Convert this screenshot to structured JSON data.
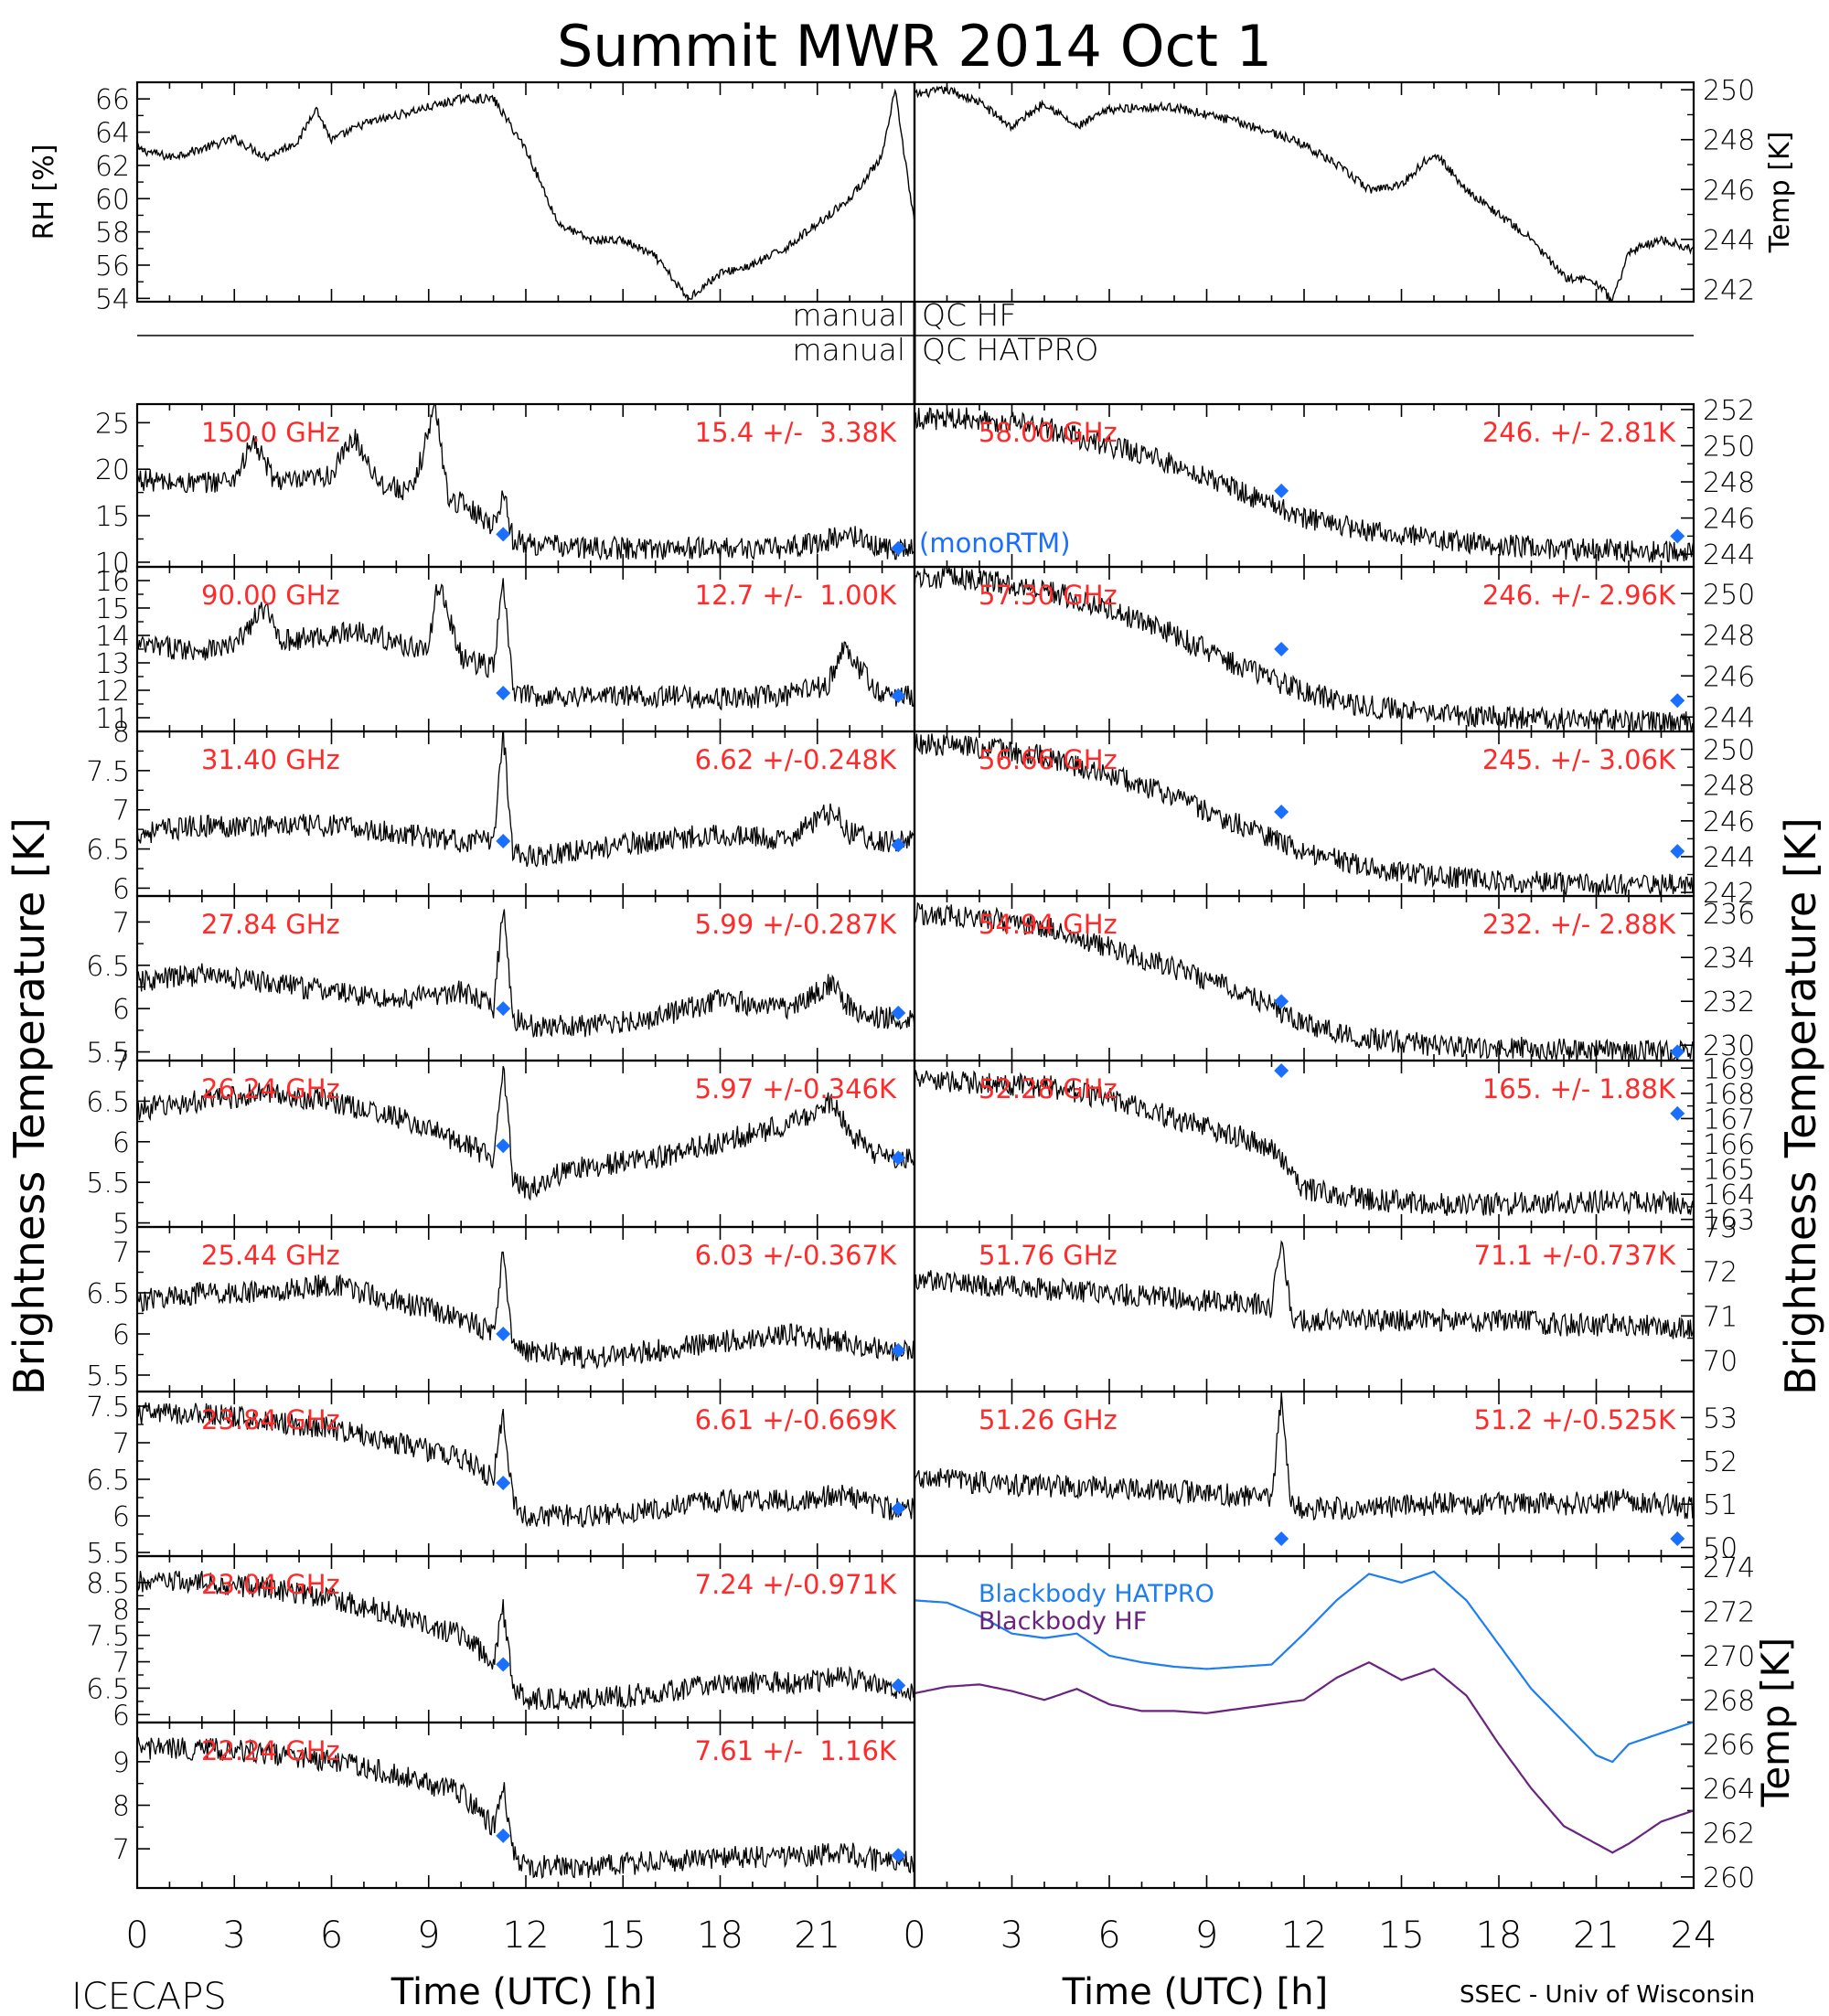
{
  "figure": {
    "title": "Summit MWR 2014 Oct  1",
    "footer_left": "ICECAPS",
    "footer_right": "SSEC - Univ of Wisconsin",
    "left_axis_label": "Brightness Temperature [K]",
    "right_axis_label": "Brightness Temperature [K]",
    "xlabel": "Time (UTC) [h]",
    "x_ticks": [
      "0",
      "3",
      "6",
      "9",
      "12",
      "15",
      "18",
      "21"
    ],
    "x_ticks_right": [
      "0",
      "3",
      "6",
      "9",
      "12",
      "15",
      "18",
      "21",
      "24"
    ],
    "qc_hf": "manual",
    "qc_hf_right": "QC HF",
    "qc_hatpro": "manual",
    "qc_hatpro_right": "QC HATPRO",
    "monortm_label": "(monoRTM)",
    "colors": {
      "trace": "#000000",
      "annotation": "#ff2a2a",
      "marker": "#1a6fff",
      "hatpro": "#1e7ef0",
      "hf": "#6a2480"
    }
  },
  "chart_data": [
    {
      "id": "rh",
      "type": "line",
      "ylabel": "RH [%]",
      "ylim": [
        53.8,
        67
      ],
      "yticks": [
        54,
        56,
        58,
        60,
        62,
        64,
        66
      ],
      "x": [
        0,
        1,
        2,
        3,
        4,
        5,
        5.5,
        6,
        7,
        8,
        9,
        10,
        11,
        12,
        13,
        14,
        15,
        16,
        17,
        18,
        19,
        20,
        21,
        22,
        23,
        23.4,
        24
      ],
      "values": [
        63,
        62.5,
        63,
        63.6,
        62.5,
        63.5,
        65.5,
        63.5,
        64.5,
        65,
        65.5,
        66,
        66,
        63,
        58.5,
        57.5,
        57.5,
        56.5,
        54,
        55.5,
        56,
        57,
        58.5,
        60,
        62.5,
        66.5,
        58.5
      ]
    },
    {
      "id": "temp",
      "type": "line",
      "ylabel": "Temp [K]",
      "ylim": [
        241.5,
        250.3
      ],
      "yticks": [
        242,
        244,
        246,
        248,
        250
      ],
      "x": [
        0,
        1,
        2,
        3,
        4,
        5,
        6,
        7,
        8,
        9,
        10,
        11,
        12,
        13,
        14,
        15,
        16,
        17,
        18,
        19,
        20,
        21,
        21.5,
        22,
        23,
        24
      ],
      "values": [
        249.8,
        250,
        249.5,
        248.5,
        249.5,
        248.5,
        249.2,
        249.3,
        249.3,
        249,
        248.7,
        248.3,
        247.8,
        247,
        246,
        246.2,
        247.5,
        246,
        245,
        244,
        242.5,
        242.3,
        241.5,
        243.5,
        244,
        243.6
      ]
    },
    {
      "id": "ch150",
      "type": "line",
      "channel": "150.0 GHz",
      "stats": "15.4 +/-  3.38K",
      "ylim": [
        9.5,
        27
      ],
      "yticks": [
        10,
        15,
        20,
        25
      ],
      "x": [
        0,
        1,
        2,
        3,
        3.6,
        4.2,
        5,
        6,
        6.7,
        7.5,
        8.5,
        9.2,
        9.6,
        10.2,
        11,
        11.3,
        11.6,
        12,
        14,
        16,
        18,
        20,
        21.5,
        22,
        23,
        24
      ],
      "values": [
        19,
        18.5,
        18.5,
        19,
        23,
        19,
        18.5,
        19.5,
        23.5,
        18.5,
        17.5,
        27,
        17,
        16,
        14,
        17.5,
        12.5,
        12,
        11.5,
        11.5,
        11.5,
        11.5,
        12.5,
        13,
        11.5,
        11.5
      ],
      "markers": [
        {
          "x": 11.3,
          "y": 13.0
        },
        {
          "x": 23.5,
          "y": 11.5
        }
      ]
    },
    {
      "id": "ch90",
      "type": "line",
      "channel": "90.00 GHz",
      "stats": "12.7 +/-  1.00K",
      "ylim": [
        10.5,
        16.5
      ],
      "yticks": [
        11,
        12,
        13,
        14,
        15,
        16
      ],
      "x": [
        0,
        2,
        3,
        3.9,
        4.5,
        6,
        7,
        8,
        9,
        9.3,
        10,
        11,
        11.3,
        11.6,
        12,
        14,
        16,
        18,
        20,
        21.3,
        21.8,
        22.5,
        23,
        24
      ],
      "values": [
        13.6,
        13.5,
        13.6,
        15,
        13.8,
        14,
        14.2,
        13.7,
        13.5,
        16,
        13.2,
        12.8,
        16,
        12.0,
        11.8,
        11.8,
        11.8,
        11.7,
        11.8,
        12.2,
        13.5,
        12.5,
        11.8,
        11.8
      ],
      "markers": [
        {
          "x": 11.3,
          "y": 11.9
        },
        {
          "x": 23.5,
          "y": 11.8
        }
      ]
    },
    {
      "id": "ch31",
      "type": "line",
      "channel": "31.40 GHz",
      "stats": "6.62 +/-0.248K",
      "ylim": [
        5.9,
        8.0
      ],
      "yticks": [
        6.0,
        6.5,
        7.0,
        7.5,
        8.0
      ],
      "x": [
        0,
        2,
        4,
        6,
        8,
        10,
        11,
        11.3,
        11.6,
        12,
        14,
        16,
        18,
        20,
        21.5,
        22,
        23,
        24
      ],
      "values": [
        6.7,
        6.8,
        6.8,
        6.8,
        6.7,
        6.6,
        6.6,
        8.0,
        6.5,
        6.4,
        6.5,
        6.6,
        6.7,
        6.6,
        7.0,
        6.7,
        6.6,
        6.6
      ],
      "markers": [
        {
          "x": 11.3,
          "y": 6.6
        },
        {
          "x": 23.5,
          "y": 6.55
        }
      ]
    },
    {
      "id": "ch27",
      "type": "line",
      "channel": "27.84 GHz",
      "stats": "5.99 +/-0.287K",
      "ylim": [
        5.4,
        7.3
      ],
      "yticks": [
        5.5,
        6.0,
        6.5,
        7.0
      ],
      "x": [
        0,
        2,
        4,
        6,
        8,
        10,
        11,
        11.3,
        11.6,
        12,
        14,
        16,
        18,
        20,
        21.5,
        22,
        23,
        24
      ],
      "values": [
        6.3,
        6.4,
        6.3,
        6.2,
        6.1,
        6.2,
        6.0,
        7.2,
        5.9,
        5.8,
        5.8,
        5.9,
        6.1,
        6.0,
        6.3,
        6.0,
        5.9,
        5.9
      ],
      "markers": [
        {
          "x": 11.3,
          "y": 6.0
        },
        {
          "x": 23.5,
          "y": 5.95
        }
      ]
    },
    {
      "id": "ch26",
      "type": "line",
      "channel": "26.24 GHz",
      "stats": "5.97 +/-0.346K",
      "ylim": [
        4.95,
        7.0
      ],
      "yticks": [
        5.0,
        5.5,
        6.0,
        6.5,
        7.0
      ],
      "x": [
        0,
        2,
        4,
        6,
        8,
        10,
        11,
        11.3,
        11.6,
        12,
        13,
        14,
        16,
        18,
        20,
        21.5,
        22,
        23,
        24
      ],
      "values": [
        6.4,
        6.5,
        6.6,
        6.5,
        6.3,
        6.0,
        5.8,
        7.0,
        5.6,
        5.4,
        5.6,
        5.7,
        5.8,
        6.0,
        6.2,
        6.5,
        6.1,
        5.8,
        5.8
      ],
      "markers": [
        {
          "x": 11.3,
          "y": 5.95
        },
        {
          "x": 23.5,
          "y": 5.8
        }
      ]
    },
    {
      "id": "ch25",
      "type": "line",
      "channel": "25.44 GHz",
      "stats": "6.03 +/-0.367K",
      "ylim": [
        5.3,
        7.3
      ],
      "yticks": [
        5.5,
        6.0,
        6.5,
        7.0
      ],
      "x": [
        0,
        2,
        4,
        6,
        8,
        10,
        11,
        11.3,
        11.6,
        12,
        14,
        16,
        18,
        20,
        22,
        23,
        24
      ],
      "values": [
        6.4,
        6.5,
        6.5,
        6.6,
        6.4,
        6.2,
        6.0,
        7.0,
        5.9,
        5.8,
        5.7,
        5.8,
        5.9,
        6.0,
        5.9,
        5.8,
        5.8
      ],
      "markers": [
        {
          "x": 11.3,
          "y": 6.0
        },
        {
          "x": 23.5,
          "y": 5.8
        }
      ]
    },
    {
      "id": "ch23_84",
      "type": "line",
      "channel": "23.84 GHz",
      "stats": "6.61 +/-0.669K",
      "ylim": [
        5.45,
        7.7
      ],
      "yticks": [
        5.5,
        6.0,
        6.5,
        7.0,
        7.5
      ],
      "x": [
        0,
        2,
        4,
        6,
        8,
        10,
        11,
        11.3,
        11.6,
        12,
        14,
        16,
        18,
        20,
        22,
        23,
        24
      ],
      "values": [
        7.4,
        7.4,
        7.3,
        7.2,
        7.0,
        6.8,
        6.5,
        7.4,
        6.2,
        6.0,
        6.0,
        6.1,
        6.2,
        6.2,
        6.3,
        6.1,
        6.1
      ],
      "markers": [
        {
          "x": 11.3,
          "y": 6.45
        },
        {
          "x": 23.5,
          "y": 6.1
        }
      ]
    },
    {
      "id": "ch23_04",
      "type": "line",
      "channel": "23.04 GHz",
      "stats": "7.24 +/-0.971K",
      "ylim": [
        5.85,
        9.0
      ],
      "yticks": [
        6.0,
        6.5,
        7.0,
        7.5,
        8.0,
        8.5
      ],
      "x": [
        0,
        2,
        4,
        6,
        8,
        10,
        11,
        11.3,
        11.6,
        12,
        14,
        16,
        18,
        20,
        22,
        23,
        24
      ],
      "values": [
        8.5,
        8.5,
        8.4,
        8.2,
        7.9,
        7.5,
        7.0,
        8.0,
        6.5,
        6.3,
        6.3,
        6.4,
        6.6,
        6.6,
        6.7,
        6.5,
        6.4
      ],
      "markers": [
        {
          "x": 11.3,
          "y": 6.95
        },
        {
          "x": 23.5,
          "y": 6.55
        }
      ]
    },
    {
      "id": "ch22",
      "type": "line",
      "channel": "22.24 GHz",
      "stats": "7.61 +/-  1.16K",
      "ylim": [
        6.1,
        9.9
      ],
      "yticks": [
        7,
        8,
        9
      ],
      "x": [
        0,
        2,
        4,
        6,
        8,
        10,
        11,
        11.3,
        11.6,
        12,
        14,
        16,
        18,
        20,
        22,
        23,
        24
      ],
      "values": [
        9.3,
        9.3,
        9.2,
        9.0,
        8.7,
        8.3,
        7.5,
        8.5,
        6.9,
        6.6,
        6.6,
        6.7,
        6.8,
        6.8,
        6.9,
        6.7,
        6.7
      ],
      "markers": [
        {
          "x": 11.3,
          "y": 7.3
        },
        {
          "x": 23.5,
          "y": 6.85
        }
      ]
    },
    {
      "id": "ch58",
      "type": "line",
      "channel": "58.00 GHz",
      "stats": "246. +/- 2.81K",
      "ylim": [
        243.3,
        252.3
      ],
      "yticks": [
        244,
        246,
        248,
        250,
        252
      ],
      "x": [
        0,
        2,
        4,
        6,
        8,
        10,
        12,
        14,
        16,
        18,
        20,
        22,
        24
      ],
      "values": [
        251.5,
        251.5,
        251,
        250,
        249,
        247.5,
        246,
        245.3,
        244.8,
        244.5,
        244.3,
        244.2,
        244.1
      ],
      "markers": [
        {
          "x": 11.3,
          "y": 247.5
        },
        {
          "x": 23.5,
          "y": 245.0
        }
      ]
    },
    {
      "id": "ch57_30",
      "type": "line",
      "channel": "57.30 GHz",
      "stats": "246. +/- 2.96K",
      "ylim": [
        243.3,
        251.3
      ],
      "yticks": [
        244,
        246,
        248,
        250
      ],
      "x": [
        0,
        2,
        4,
        6,
        8,
        10,
        12,
        14,
        16,
        18,
        20,
        22,
        24
      ],
      "values": [
        250.8,
        250.7,
        250.2,
        249.3,
        248,
        246.5,
        245.2,
        244.5,
        244.2,
        244,
        243.9,
        243.8,
        243.7
      ],
      "markers": [
        {
          "x": 11.3,
          "y": 247.3
        },
        {
          "x": 23.5,
          "y": 244.8
        }
      ]
    },
    {
      "id": "ch56_66",
      "type": "line",
      "channel": "56.66 GHz",
      "stats": "245. +/- 3.06K",
      "ylim": [
        241.8,
        251.0
      ],
      "yticks": [
        242,
        244,
        246,
        248,
        250
      ],
      "x": [
        0,
        2,
        4,
        6,
        8,
        10,
        12,
        14,
        16,
        18,
        20,
        22,
        24
      ],
      "values": [
        250.3,
        250.1,
        249.6,
        248.6,
        247.3,
        245.8,
        244.3,
        243.4,
        242.9,
        242.7,
        242.5,
        242.4,
        242.4
      ],
      "markers": [
        {
          "x": 11.3,
          "y": 246.5
        },
        {
          "x": 23.5,
          "y": 244.3
        }
      ]
    },
    {
      "id": "ch54_94",
      "type": "line",
      "channel": "54.94 GHz",
      "stats": "232. +/- 2.88K",
      "ylim": [
        229.3,
        236.8
      ],
      "yticks": [
        230,
        232,
        234,
        236
      ],
      "x": [
        0,
        2,
        4,
        6,
        8,
        10,
        12,
        14,
        16,
        18,
        20,
        22,
        24
      ],
      "values": [
        236.0,
        235.8,
        235.4,
        234.5,
        233.5,
        232.5,
        231.0,
        230.3,
        230.0,
        229.9,
        229.8,
        229.7,
        229.7
      ],
      "markers": [
        {
          "x": 11.3,
          "y": 232.0
        },
        {
          "x": 23.5,
          "y": 229.7
        }
      ]
    },
    {
      "id": "ch52_28",
      "type": "line",
      "channel": "52.28 GHz",
      "stats": "165. +/- 1.88K",
      "ylim": [
        162.7,
        169.3
      ],
      "yticks": [
        163,
        164,
        165,
        166,
        167,
        168,
        169
      ],
      "x": [
        0,
        2,
        4,
        6,
        8,
        10,
        11,
        12,
        14,
        16,
        18,
        20,
        22,
        24
      ],
      "values": [
        168.5,
        168.4,
        168.3,
        167.8,
        167.0,
        166.3,
        165.8,
        164.2,
        163.8,
        163.6,
        163.6,
        163.7,
        163.7,
        163.6
      ],
      "markers": [
        {
          "x": 11.3,
          "y": 168.9
        },
        {
          "x": 23.5,
          "y": 167.2
        }
      ]
    },
    {
      "id": "ch51_76",
      "type": "line",
      "channel": "51.76 GHz",
      "stats": "71.1 +/-0.737K",
      "ylim": [
        69.3,
        73.0
      ],
      "yticks": [
        70,
        71,
        72,
        73
      ],
      "x": [
        0,
        2,
        4,
        6,
        8,
        10,
        11,
        11.3,
        11.6,
        12,
        14,
        16,
        18,
        20,
        22,
        24
      ],
      "values": [
        71.8,
        71.7,
        71.6,
        71.5,
        71.4,
        71.3,
        71.2,
        72.7,
        71.0,
        70.9,
        70.9,
        70.9,
        70.9,
        70.8,
        70.8,
        70.7
      ],
      "markers": []
    },
    {
      "id": "ch51_26",
      "type": "line",
      "channel": "51.26 GHz",
      "stats": "51.2 +/-0.525K",
      "ylim": [
        49.8,
        53.6
      ],
      "yticks": [
        50,
        51,
        52,
        53
      ],
      "x": [
        0,
        2,
        4,
        6,
        8,
        10,
        11,
        11.3,
        11.6,
        12,
        14,
        16,
        18,
        20,
        22,
        24
      ],
      "values": [
        51.6,
        51.5,
        51.4,
        51.4,
        51.3,
        51.2,
        51.1,
        53.5,
        51.0,
        50.9,
        50.9,
        51.0,
        51.0,
        51.0,
        51.1,
        50.9
      ],
      "markers": [
        {
          "x": 11.3,
          "y": 50.2
        },
        {
          "x": 23.5,
          "y": 50.2
        }
      ]
    },
    {
      "id": "blackbody",
      "type": "line",
      "ylabel": "Temp [K]",
      "ylim": [
        259.5,
        274.5
      ],
      "yticks": [
        260,
        262,
        264,
        266,
        268,
        270,
        272,
        274
      ],
      "series": [
        {
          "name": "Blackbody HATPRO",
          "x": [
            0,
            1,
            2,
            3,
            4,
            5,
            6,
            7,
            8,
            9,
            10,
            11,
            12,
            13,
            14,
            15,
            16,
            17,
            18,
            19,
            20,
            21,
            21.5,
            22,
            23,
            24
          ],
          "values": [
            272.5,
            272.4,
            271.8,
            271.0,
            270.8,
            271.0,
            270.0,
            269.7,
            269.5,
            269.4,
            269.5,
            269.6,
            271.0,
            272.5,
            273.7,
            273.3,
            273.8,
            272.5,
            270.5,
            268.5,
            267.0,
            265.5,
            265.2,
            266.0,
            266.5,
            267.0
          ]
        },
        {
          "name": "Blackbody HF",
          "x": [
            0,
            1,
            2,
            3,
            4,
            5,
            6,
            7,
            8,
            9,
            10,
            11,
            12,
            13,
            14,
            15,
            16,
            17,
            18,
            19,
            20,
            21,
            21.5,
            22,
            23,
            24
          ],
          "values": [
            268.3,
            268.6,
            268.7,
            268.4,
            268.0,
            268.5,
            267.8,
            267.5,
            267.5,
            267.4,
            267.6,
            267.8,
            268.0,
            269.0,
            269.7,
            268.9,
            269.4,
            268.2,
            266.0,
            264.0,
            262.3,
            261.5,
            261.1,
            261.5,
            262.5,
            263.0
          ]
        }
      ]
    }
  ]
}
